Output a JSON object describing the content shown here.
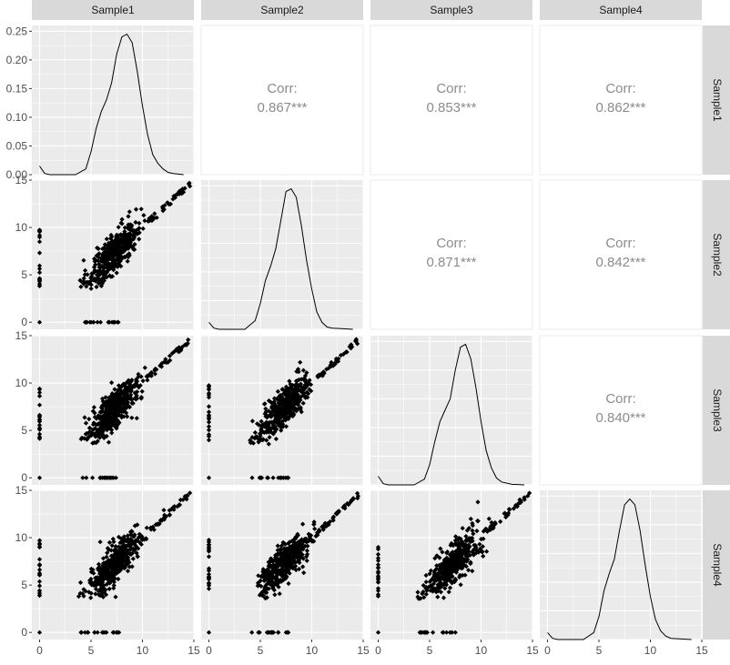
{
  "chart_data": {
    "type": "scatter",
    "subtype": "pairs-matrix",
    "variables": [
      "Sample1",
      "Sample2",
      "Sample3",
      "Sample4"
    ],
    "diagonal": {
      "type": "density",
      "x_ticks": [
        0,
        5,
        10,
        15
      ],
      "y_ticks_first_panel": [
        "0.00",
        "0.05",
        "0.10",
        "0.15",
        "0.20",
        "0.25"
      ],
      "ylim": [
        0,
        0.26
      ],
      "curves": [
        {
          "variable": "Sample1",
          "points": [
            [
              0,
              0.015
            ],
            [
              0.5,
              0.002
            ],
            [
              1,
              0
            ],
            [
              3.5,
              0
            ],
            [
              4.5,
              0.01
            ],
            [
              5,
              0.04
            ],
            [
              5.5,
              0.08
            ],
            [
              6,
              0.11
            ],
            [
              6.5,
              0.13
            ],
            [
              7,
              0.16
            ],
            [
              7.5,
              0.21
            ],
            [
              8,
              0.24
            ],
            [
              8.5,
              0.245
            ],
            [
              9,
              0.23
            ],
            [
              9.5,
              0.18
            ],
            [
              10,
              0.12
            ],
            [
              10.5,
              0.07
            ],
            [
              11,
              0.035
            ],
            [
              11.5,
              0.02
            ],
            [
              12,
              0.01
            ],
            [
              12.5,
              0.004
            ],
            [
              13,
              0.002
            ],
            [
              14,
              0
            ]
          ]
        },
        {
          "variable": "Sample2",
          "points": [
            [
              0,
              0.012
            ],
            [
              0.5,
              0.002
            ],
            [
              1,
              0
            ],
            [
              3.5,
              0
            ],
            [
              4.5,
              0.015
            ],
            [
              5,
              0.045
            ],
            [
              5.5,
              0.085
            ],
            [
              6,
              0.11
            ],
            [
              6.5,
              0.14
            ],
            [
              7,
              0.19
            ],
            [
              7.5,
              0.24
            ],
            [
              8,
              0.245
            ],
            [
              8.5,
              0.23
            ],
            [
              9,
              0.18
            ],
            [
              9.5,
              0.12
            ],
            [
              10,
              0.07
            ],
            [
              10.5,
              0.03
            ],
            [
              11,
              0.012
            ],
            [
              11.5,
              0.004
            ],
            [
              12,
              0.002
            ],
            [
              14,
              0
            ]
          ]
        },
        {
          "variable": "Sample3",
          "points": [
            [
              0,
              0.015
            ],
            [
              0.5,
              0.002
            ],
            [
              1,
              0
            ],
            [
              3.5,
              0
            ],
            [
              4.5,
              0.01
            ],
            [
              5,
              0.035
            ],
            [
              5.5,
              0.075
            ],
            [
              6,
              0.11
            ],
            [
              6.5,
              0.13
            ],
            [
              7,
              0.15
            ],
            [
              7.5,
              0.2
            ],
            [
              8,
              0.24
            ],
            [
              8.5,
              0.245
            ],
            [
              9,
              0.22
            ],
            [
              9.5,
              0.17
            ],
            [
              10,
              0.11
            ],
            [
              10.5,
              0.06
            ],
            [
              11,
              0.03
            ],
            [
              11.5,
              0.012
            ],
            [
              12,
              0.005
            ],
            [
              13,
              0.001
            ],
            [
              14.2,
              0
            ]
          ]
        },
        {
          "variable": "Sample4",
          "points": [
            [
              0,
              0.012
            ],
            [
              0.5,
              0.002
            ],
            [
              1,
              0
            ],
            [
              3.5,
              0
            ],
            [
              4.5,
              0.012
            ],
            [
              5,
              0.04
            ],
            [
              5.5,
              0.085
            ],
            [
              6,
              0.115
            ],
            [
              6.5,
              0.14
            ],
            [
              7,
              0.19
            ],
            [
              7.5,
              0.235
            ],
            [
              8,
              0.245
            ],
            [
              8.5,
              0.235
            ],
            [
              9,
              0.19
            ],
            [
              9.5,
              0.13
            ],
            [
              10,
              0.075
            ],
            [
              10.5,
              0.035
            ],
            [
              11,
              0.015
            ],
            [
              11.5,
              0.006
            ],
            [
              12,
              0.002
            ],
            [
              14,
              0
            ]
          ]
        }
      ]
    },
    "scatter_axes": {
      "x_ticks": [
        0,
        5,
        10,
        15
      ],
      "y_ticks": [
        0,
        5,
        10,
        15
      ],
      "xlim": [
        -0.75,
        15
      ],
      "ylim": [
        -0.75,
        15
      ]
    },
    "correlations": [
      {
        "row": "Sample1",
        "col": "Sample2",
        "label": "Corr:",
        "value": "0.867***"
      },
      {
        "row": "Sample1",
        "col": "Sample3",
        "label": "Corr:",
        "value": "0.853***"
      },
      {
        "row": "Sample1",
        "col": "Sample4",
        "label": "Corr:",
        "value": "0.862***"
      },
      {
        "row": "Sample2",
        "col": "Sample3",
        "label": "Corr:",
        "value": "0.871***"
      },
      {
        "row": "Sample2",
        "col": "Sample4",
        "label": "Corr:",
        "value": "0.842***"
      },
      {
        "row": "Sample3",
        "col": "Sample4",
        "label": "Corr:",
        "value": "0.840***"
      }
    ],
    "grid": true
  },
  "colors": {
    "panel_bg": "#ebebeb",
    "grid_major": "#ffffff",
    "strip_bg": "#d9d9d9",
    "corr_text": "#8c8c8c",
    "points": "#000000",
    "axis_text": "#4d4d4d"
  }
}
